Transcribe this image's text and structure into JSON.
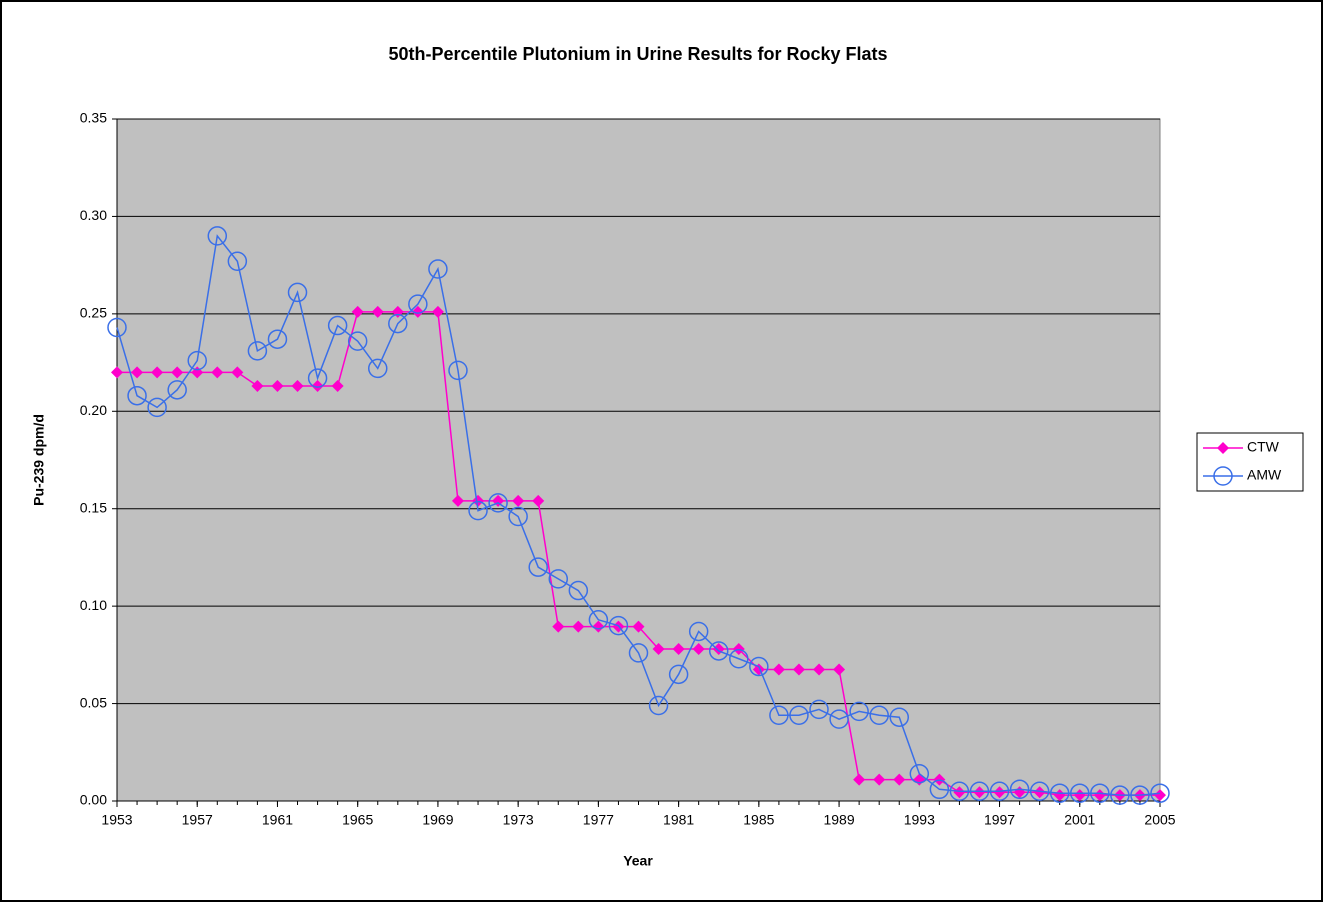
{
  "chart_data": {
    "type": "line",
    "title": "50th-Percentile Plutonium in Urine Results for Rocky Flats",
    "x_label": "Year",
    "y_label": "Pu-239 dpm/d",
    "x": [
      1953,
      1954,
      1955,
      1956,
      1957,
      1958,
      1959,
      1960,
      1961,
      1962,
      1963,
      1964,
      1965,
      1966,
      1967,
      1968,
      1969,
      1970,
      1971,
      1972,
      1973,
      1974,
      1975,
      1976,
      1977,
      1978,
      1979,
      1980,
      1981,
      1982,
      1983,
      1984,
      1985,
      1986,
      1987,
      1988,
      1989,
      1990,
      1991,
      1992,
      1993,
      1994,
      1995,
      1996,
      1997,
      1998,
      1999,
      2000,
      2001,
      2002,
      2003,
      2004,
      2005
    ],
    "series": [
      {
        "name": "CTW",
        "color": "#ff00cc",
        "marker": "diamond",
        "values": [
          0.22,
          0.22,
          0.22,
          0.22,
          0.22,
          0.22,
          0.22,
          0.213,
          0.213,
          0.213,
          0.213,
          0.213,
          0.251,
          0.251,
          0.251,
          0.251,
          0.251,
          0.154,
          0.154,
          0.154,
          0.154,
          0.154,
          0.0895,
          0.0895,
          0.0895,
          0.0895,
          0.0895,
          0.078,
          0.078,
          0.078,
          0.078,
          0.078,
          0.0675,
          0.0675,
          0.0675,
          0.0675,
          0.0675,
          0.011,
          0.011,
          0.011,
          0.011,
          0.011,
          0.0045,
          0.0045,
          0.0045,
          0.0045,
          0.0045,
          0.003,
          0.003,
          0.003,
          0.003,
          0.003,
          0.003
        ]
      },
      {
        "name": "AMW",
        "color": "#3a6fe8",
        "marker": "circle",
        "values": [
          0.243,
          0.208,
          0.202,
          0.211,
          0.226,
          0.29,
          0.277,
          0.231,
          0.237,
          0.261,
          0.217,
          0.244,
          0.236,
          0.222,
          0.245,
          0.255,
          0.273,
          0.221,
          0.149,
          0.153,
          0.146,
          0.12,
          0.114,
          0.108,
          0.093,
          0.09,
          0.076,
          0.049,
          0.065,
          0.087,
          0.077,
          0.073,
          0.069,
          0.044,
          0.044,
          0.047,
          0.042,
          0.046,
          0.044,
          0.043,
          0.014,
          0.006,
          0.005,
          0.005,
          0.005,
          0.006,
          0.005,
          0.004,
          0.004,
          0.004,
          0.003,
          0.003,
          0.004
        ]
      }
    ],
    "xlim": [
      1953,
      2005
    ],
    "xticks": [
      1953,
      1957,
      1961,
      1965,
      1969,
      1973,
      1977,
      1981,
      1985,
      1989,
      1993,
      1997,
      2001,
      2005
    ],
    "ylim": [
      0,
      0.35
    ],
    "yticks": [
      {
        "value": 0,
        "label": "0.00"
      },
      {
        "value": 0.05,
        "label": "0.05"
      },
      {
        "value": 0.1,
        "label": "0.10"
      },
      {
        "value": 0.15,
        "label": "0.15"
      },
      {
        "value": 0.2,
        "label": "0.20"
      },
      {
        "value": 0.25,
        "label": "0.25"
      },
      {
        "value": 0.3,
        "label": "0.30"
      },
      {
        "value": 0.35,
        "label": "0.35"
      }
    ],
    "grid": true,
    "legend": "right"
  }
}
